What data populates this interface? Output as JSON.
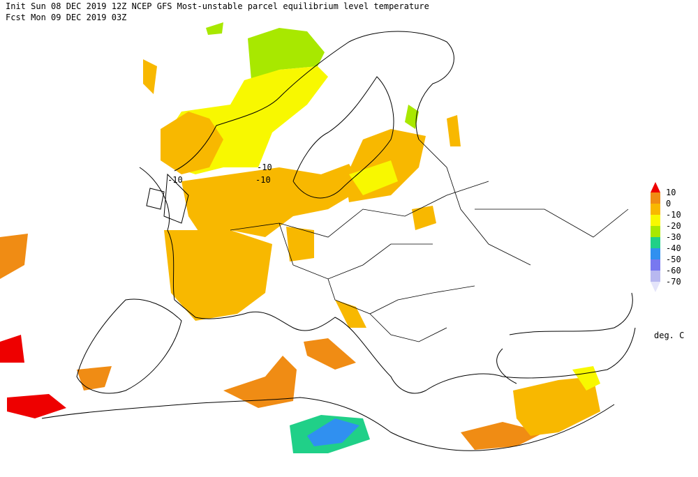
{
  "header": {
    "line1": "Init  Sun 08 DEC 2019 12Z  NCEP GFS Most-unstable parcel equilibrium level temperature",
    "line2": "Fcst Mon 09 DEC 2019 03Z"
  },
  "legend": {
    "labels": [
      10,
      0,
      -10,
      -20,
      -30,
      -40,
      -50,
      -60,
      -70
    ],
    "colors": [
      "#ee0000",
      "#f08c14",
      "#f8b800",
      "#f8f800",
      "#a8e800",
      "#20d088",
      "#3090f0",
      "#7878f0",
      "#b8b8f0",
      "#e4e4fa"
    ],
    "unit": "deg. C"
  },
  "contour_labels": [
    "-10",
    "-10",
    "-10"
  ]
}
